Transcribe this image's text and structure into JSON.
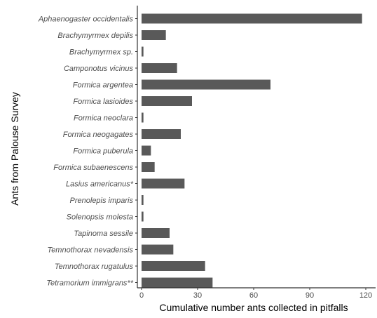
{
  "chart_data": {
    "type": "bar",
    "orientation": "horizontal",
    "title": "",
    "xlabel": "Cumulative number ants collected in pitfalls",
    "ylabel": "Ants from Palouse Survey",
    "xlim": [
      0,
      120
    ],
    "xticks": [
      0,
      30,
      60,
      90,
      120
    ],
    "grid": false,
    "bar_color": "#595959",
    "axis_color": "#333333",
    "categories": [
      "Aphaenogaster occidentalis",
      "Brachymyrmex depilis",
      "Brachymyrmex sp.",
      "Camponotus vicinus",
      "Formica argentea",
      "Formica lasioides",
      "Formica neoclara",
      "Formica neogagates",
      "Formica puberula",
      "Formica subaenescens",
      "Lasius americanus*",
      "Prenolepis imparis",
      "Solenopsis molesta",
      "Tapinoma sessile",
      "Temnothorax nevadensis",
      "Temnothorax rugatulus",
      "Tetramorium immigrans**"
    ],
    "values": [
      118,
      13,
      1,
      19,
      69,
      27,
      1,
      21,
      5,
      7,
      23,
      1,
      1,
      15,
      17,
      34,
      38
    ]
  }
}
